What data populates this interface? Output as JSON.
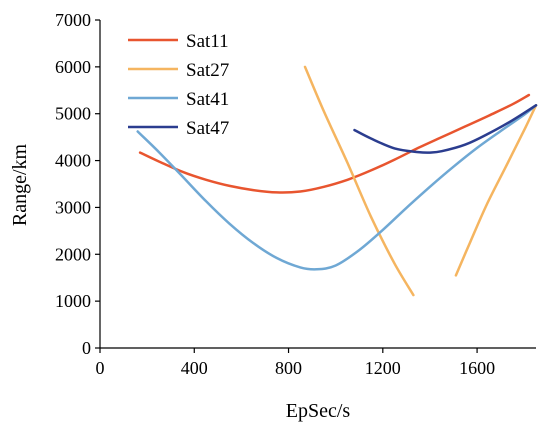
{
  "chart_data": {
    "type": "line",
    "title": "",
    "xlabel": "EpSec/s",
    "ylabel": "Range/km",
    "xlim": [
      0,
      1850
    ],
    "ylim": [
      0,
      7000
    ],
    "xticks": [
      0,
      400,
      800,
      1200,
      1600
    ],
    "yticks": [
      0,
      1000,
      2000,
      3000,
      4000,
      5000,
      6000,
      7000
    ],
    "grid": false,
    "legend_position": "top-left",
    "series": [
      {
        "name": "Sat11",
        "color": "#e8552f",
        "x": [
          170,
          250,
          350,
          450,
          550,
          650,
          750,
          850,
          950,
          1050,
          1150,
          1250,
          1350,
          1450,
          1550,
          1650,
          1750,
          1820
        ],
        "y": [
          4170,
          3980,
          3760,
          3590,
          3460,
          3370,
          3320,
          3340,
          3440,
          3590,
          3790,
          4020,
          4270,
          4500,
          4730,
          4960,
          5200,
          5400
        ]
      },
      {
        "name": "Sat27",
        "color": "#f5b560",
        "segments": [
          {
            "x": [
              870,
              950,
              1050,
              1150,
              1250,
              1330
            ],
            "y": [
              6000,
              5050,
              3950,
              2800,
              1800,
              1130
            ]
          },
          {
            "x": [
              1510,
              1570,
              1640,
              1720,
              1800,
              1850
            ],
            "y": [
              1550,
              2250,
              3050,
              3850,
              4650,
              5180
            ]
          }
        ]
      },
      {
        "name": "Sat41",
        "color": "#6fa8d4",
        "x": [
          160,
          250,
          350,
          450,
          550,
          650,
          750,
          850,
          920,
          1000,
          1100,
          1200,
          1300,
          1400,
          1500,
          1600,
          1700,
          1800,
          1850
        ],
        "y": [
          4620,
          4180,
          3660,
          3130,
          2650,
          2240,
          1920,
          1720,
          1680,
          1760,
          2090,
          2520,
          2990,
          3440,
          3870,
          4270,
          4630,
          4980,
          5180
        ]
      },
      {
        "name": "Sat47",
        "color": "#2b3d8f",
        "x": [
          1080,
          1150,
          1250,
          1350,
          1400,
          1450,
          1550,
          1650,
          1750,
          1850
        ],
        "y": [
          4650,
          4470,
          4260,
          4180,
          4170,
          4200,
          4340,
          4580,
          4860,
          5180
        ]
      }
    ]
  }
}
